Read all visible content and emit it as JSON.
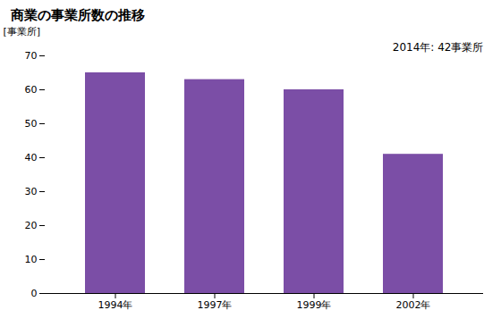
{
  "chart_data": {
    "type": "bar",
    "title": "商業の事業所数の推移",
    "ylabel": "[事業所]",
    "annotation": "2014年: 42事業所",
    "categories": [
      "1994年",
      "1997年",
      "1999年",
      "2002年"
    ],
    "values": [
      65,
      63,
      60,
      41
    ],
    "color": "#7B4EA6",
    "ylim": [
      0,
      70
    ],
    "yticks": [
      0,
      10,
      20,
      30,
      40,
      50,
      60,
      70
    ],
    "grid": false
  }
}
